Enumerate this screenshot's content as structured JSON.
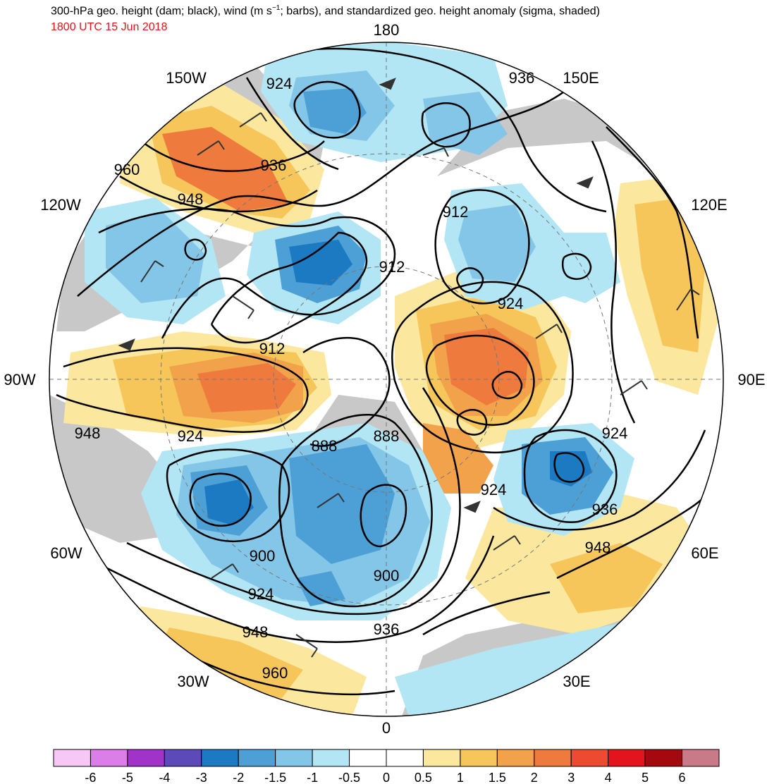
{
  "title": {
    "main_prefix": "300-hPa geo. height (dam; black), wind (m s",
    "main_sup": "−1",
    "main_suffix": "; barbs), and standardized geo. height anomaly (sigma, shaded)",
    "valid_time": "1800 UTC 15 Jun 2018"
  },
  "colors": {
    "date_text": "#e8101a",
    "land": "#c8c8c8",
    "contour": "#000000",
    "barb": "#333333"
  },
  "map": {
    "projection": "north-polar-stereographic",
    "longitude_labels": [
      {
        "label": "180",
        "lon": 180
      },
      {
        "label": "150E",
        "lon": 150
      },
      {
        "label": "120E",
        "lon": 120
      },
      {
        "label": "90E",
        "lon": 90
      },
      {
        "label": "60E",
        "lon": 60
      },
      {
        "label": "30E",
        "lon": 30
      },
      {
        "label": "0",
        "lon": 0
      },
      {
        "label": "30W",
        "lon": -30
      },
      {
        "label": "60W",
        "lon": -60
      },
      {
        "label": "90W",
        "lon": -90
      },
      {
        "label": "120W",
        "lon": -120
      },
      {
        "label": "150W",
        "lon": -150
      }
    ],
    "contour_labels": [
      "924",
      "936",
      "960",
      "936",
      "948",
      "912",
      "912",
      "912",
      "924",
      "924",
      "948",
      "924",
      "888",
      "888",
      "924",
      "936",
      "900",
      "900",
      "924",
      "948",
      "948",
      "936",
      "960"
    ]
  },
  "colorbar": {
    "tick_labels": [
      "-6",
      "-5",
      "-4",
      "-3",
      "-2",
      "-1.5",
      "-1",
      "-0.5",
      "0",
      "0.5",
      "1",
      "1.5",
      "2",
      "3",
      "4",
      "5",
      "6"
    ],
    "colors": [
      "#f7c7f5",
      "#dc7ee8",
      "#a233c8",
      "#5c4ab8",
      "#1c7ac2",
      "#4da0d6",
      "#84c6e8",
      "#b2e6f4",
      "#ffffff",
      "#ffffff",
      "#fbe79e",
      "#f6c65a",
      "#f2a24a",
      "#ee7b3d",
      "#ec4a31",
      "#e3141c",
      "#a3090f",
      "#c97a88"
    ]
  }
}
